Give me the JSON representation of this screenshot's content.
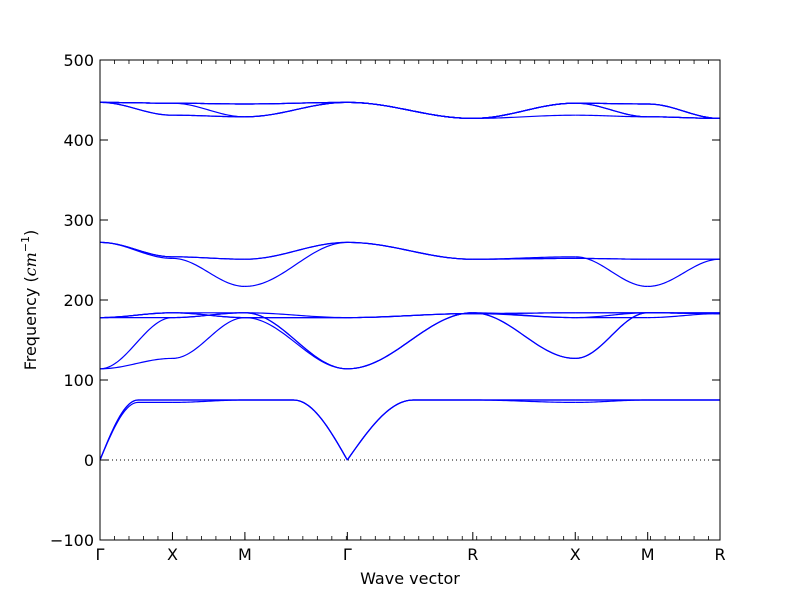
{
  "chart_data": {
    "type": "line",
    "title": "",
    "xlabel": "Wave vector",
    "ylabel_main": "Frequency (",
    "ylabel_math": "cm",
    "ylabel_sup": "−1",
    "ylabel_close": ")",
    "ylim": [
      -100,
      500
    ],
    "y_ticks": [
      -100,
      0,
      100,
      200,
      300,
      400,
      500
    ],
    "y_tick_labels": [
      "−100",
      "0",
      "100",
      "200",
      "300",
      "400",
      "500"
    ],
    "x_ticks": [
      {
        "label": "Γ",
        "pos": 0.0
      },
      {
        "label": "X",
        "pos": 0.5
      },
      {
        "label": "M",
        "pos": 1.0
      },
      {
        "label": "Γ",
        "pos": 1.707
      },
      {
        "label": "R",
        "pos": 2.573
      },
      {
        "label": "X",
        "pos": 3.28
      },
      {
        "label": "M",
        "pos": 3.78
      },
      {
        "label": "R",
        "pos": 4.279
      }
    ],
    "xlim": [
      0,
      4.279
    ],
    "zero_line": {
      "style": "dotted",
      "value": 0
    },
    "series_color": "#0000ff",
    "band_samples": [
      [
        [
          [
            0,
            0
          ],
          [
            0.1,
            35
          ],
          [
            0.2,
            58
          ],
          [
            0.3,
            69
          ],
          [
            0.4,
            72
          ],
          [
            0.5,
            72
          ],
          [
            1,
            75
          ]
        ],
        [
          [
            0,
            0
          ],
          [
            0.1,
            42
          ],
          [
            0.2,
            62
          ],
          [
            0.3,
            72
          ],
          [
            0.4,
            75
          ],
          [
            0.5,
            75
          ],
          [
            1,
            75
          ]
        ],
        [
          [
            0,
            0
          ],
          [
            0.1,
            42
          ],
          [
            0.2,
            62
          ],
          [
            0.3,
            72
          ],
          [
            0.4,
            75
          ],
          [
            0.5,
            75
          ],
          [
            1,
            75
          ]
        ]
      ]
    ],
    "segments": [
      {
        "from": "Γ",
        "to": "X",
        "bands": [
          [
            0,
            72
          ],
          [
            0,
            75
          ],
          [
            0,
            75
          ],
          [
            114,
            127
          ],
          [
            114,
            178
          ],
          [
            178,
            178
          ],
          [
            178,
            184
          ],
          [
            178,
            184
          ],
          [
            178,
            184
          ],
          [
            272,
            252
          ],
          [
            272,
            254
          ],
          [
            272,
            254
          ],
          [
            447,
            431
          ],
          [
            447,
            431
          ],
          [
            447,
            446
          ],
          [
            447,
            446
          ],
          [
            447,
            446
          ],
          [
            447,
            446
          ]
        ]
      },
      {
        "from": "X",
        "to": "M",
        "bands": [
          [
            72,
            75
          ],
          [
            75,
            75
          ],
          [
            75,
            75
          ],
          [
            127,
            178
          ],
          [
            178,
            184
          ],
          [
            178,
            184
          ],
          [
            184,
            184
          ],
          [
            184,
            178
          ],
          [
            184,
            178
          ],
          [
            252,
            217
          ],
          [
            254,
            251
          ],
          [
            254,
            251
          ],
          [
            431,
            429
          ],
          [
            431,
            429
          ],
          [
            446,
            429
          ],
          [
            446,
            445
          ],
          [
            446,
            445
          ],
          [
            446,
            445
          ]
        ]
      },
      {
        "from": "M",
        "to": "Γ",
        "bands": [
          [
            75,
            0
          ],
          [
            75,
            0
          ],
          [
            75,
            0
          ],
          [
            178,
            114
          ],
          [
            184,
            114
          ],
          [
            184,
            114
          ],
          [
            184,
            178
          ],
          [
            178,
            178
          ],
          [
            178,
            178
          ],
          [
            217,
            272
          ],
          [
            251,
            272
          ],
          [
            251,
            272
          ],
          [
            429,
            447
          ],
          [
            429,
            447
          ],
          [
            429,
            447
          ],
          [
            445,
            447
          ],
          [
            445,
            447
          ],
          [
            445,
            447
          ]
        ]
      },
      {
        "from": "Γ",
        "to": "R",
        "bands": [
          [
            0,
            75
          ],
          [
            0,
            75
          ],
          [
            0,
            75
          ],
          [
            114,
            184
          ],
          [
            114,
            184
          ],
          [
            114,
            184
          ],
          [
            178,
            183
          ],
          [
            178,
            183
          ],
          [
            178,
            183
          ],
          [
            272,
            251
          ],
          [
            272,
            251
          ],
          [
            272,
            251
          ],
          [
            447,
            427
          ],
          [
            447,
            427
          ],
          [
            447,
            427
          ],
          [
            447,
            427
          ],
          [
            447,
            427
          ],
          [
            447,
            427
          ]
        ]
      },
      {
        "from": "R",
        "to": "X",
        "bands": [
          [
            75,
            72
          ],
          [
            75,
            75
          ],
          [
            75,
            75
          ],
          [
            184,
            127
          ],
          [
            184,
            127
          ],
          [
            184,
            178
          ],
          [
            183,
            178
          ],
          [
            183,
            184
          ],
          [
            183,
            184
          ],
          [
            251,
            254
          ],
          [
            251,
            252
          ],
          [
            251,
            252
          ],
          [
            427,
            431
          ],
          [
            427,
            446
          ],
          [
            427,
            446
          ],
          [
            427,
            446
          ],
          [
            427,
            446
          ],
          [
            427,
            446
          ]
        ]
      },
      {
        "from": "X",
        "to": "M",
        "bands": [
          [
            72,
            75
          ],
          [
            75,
            75
          ],
          [
            75,
            75
          ],
          [
            127,
            184
          ],
          [
            127,
            184
          ],
          [
            178,
            178
          ],
          [
            178,
            184
          ],
          [
            184,
            184
          ],
          [
            184,
            184
          ],
          [
            254,
            217
          ],
          [
            252,
            251
          ],
          [
            252,
            251
          ],
          [
            431,
            429
          ],
          [
            446,
            429
          ],
          [
            446,
            429
          ],
          [
            446,
            445
          ],
          [
            446,
            445
          ],
          [
            446,
            445
          ]
        ]
      },
      {
        "from": "M",
        "to": "R",
        "bands": [
          [
            75,
            75
          ],
          [
            75,
            75
          ],
          [
            75,
            75
          ],
          [
            184,
            184
          ],
          [
            184,
            184
          ],
          [
            178,
            183
          ],
          [
            184,
            183
          ],
          [
            184,
            183
          ],
          [
            184,
            183
          ],
          [
            217,
            251
          ],
          [
            251,
            251
          ],
          [
            251,
            251
          ],
          [
            429,
            427
          ],
          [
            429,
            427
          ],
          [
            429,
            427
          ],
          [
            445,
            427
          ],
          [
            445,
            427
          ],
          [
            445,
            427
          ]
        ]
      }
    ]
  }
}
